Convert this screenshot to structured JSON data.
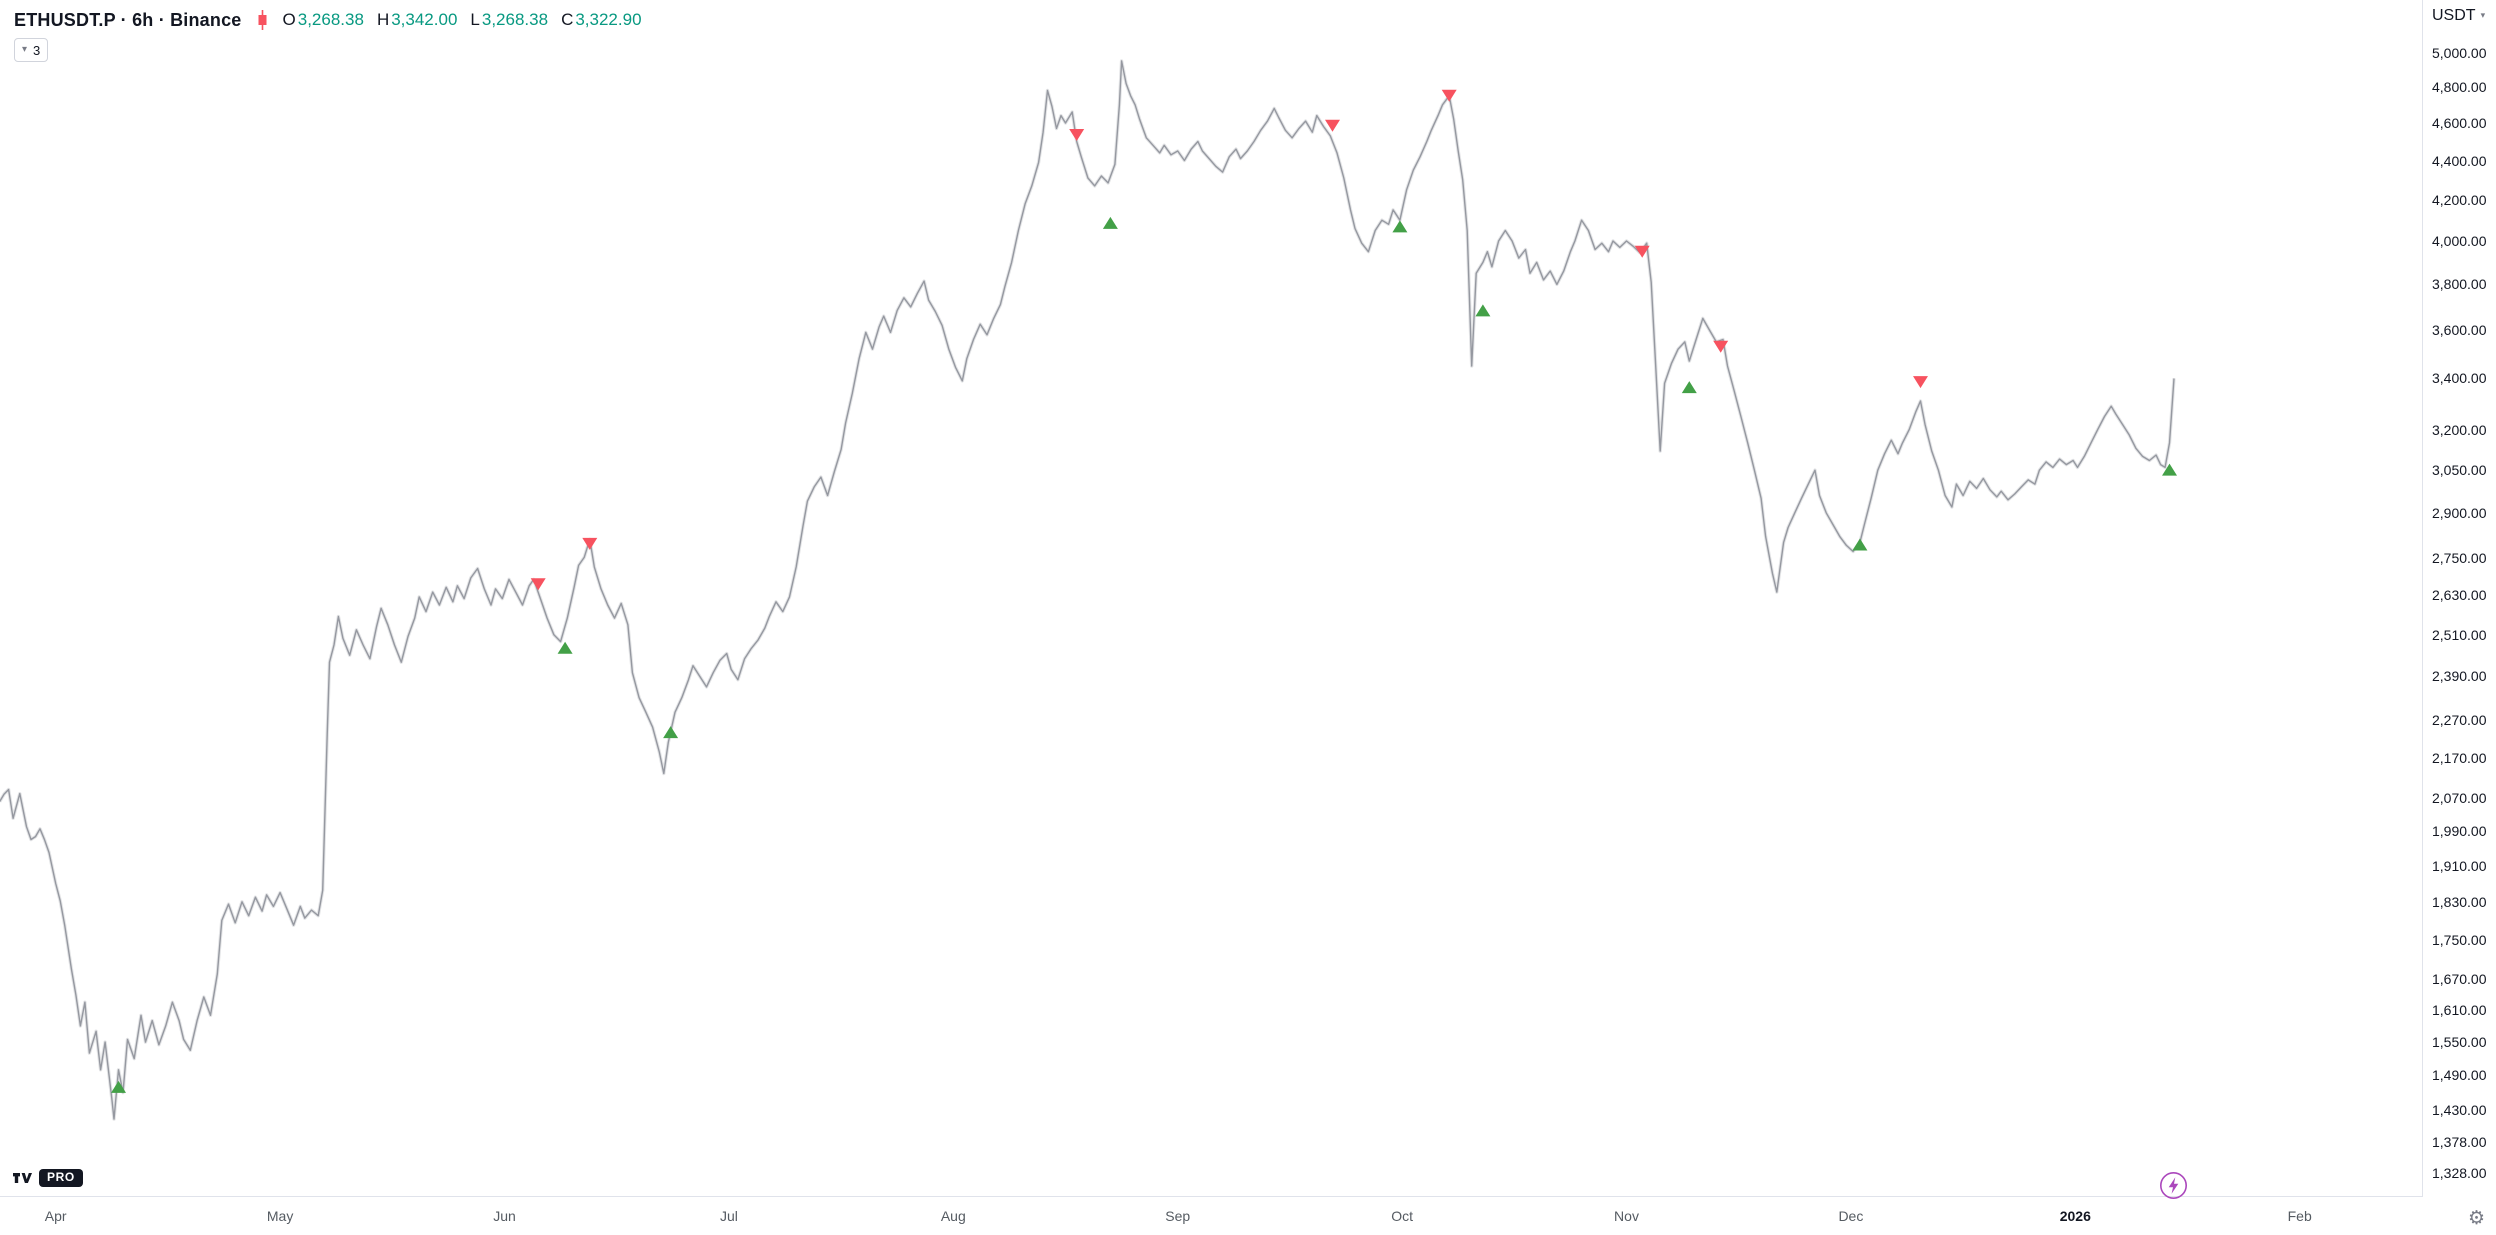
{
  "header": {
    "title": "ETHUSDT.P · 6h · Binance",
    "symbol": "ETHUSDT.P",
    "interval": "6h",
    "exchange": "Binance",
    "ohlc": {
      "o_label": "O",
      "o": "3,268.38",
      "h_label": "H",
      "h": "3,342.00",
      "l_label": "L",
      "l": "3,268.38",
      "c_label": "C",
      "c": "3,322.90"
    },
    "indicator_count": "3"
  },
  "price_axis": {
    "currency": "USDT",
    "labels": [
      "5,000.00",
      "4,800.00",
      "4,600.00",
      "4,400.00",
      "4,200.00",
      "4,000.00",
      "3,800.00",
      "3,600.00",
      "3,400.00",
      "3,200.00",
      "3,050.00",
      "2,900.00",
      "2,750.00",
      "2,630.00",
      "2,510.00",
      "2,390.00",
      "2,270.00",
      "2,170.00",
      "2,070.00",
      "1,990.00",
      "1,910.00",
      "1,830.00",
      "1,750.00",
      "1,670.00",
      "1,610.00",
      "1,550.00",
      "1,490.00",
      "1,430.00",
      "1,378.00",
      "1,328.00"
    ],
    "values": [
      5000,
      4800,
      4600,
      4400,
      4200,
      4000,
      3800,
      3600,
      3400,
      3200,
      3050,
      2900,
      2750,
      2630,
      2510,
      2390,
      2270,
      2170,
      2070,
      1990,
      1910,
      1830,
      1750,
      1670,
      1610,
      1550,
      1490,
      1430,
      1378,
      1328
    ]
  },
  "time_axis": {
    "labels": [
      {
        "label": "Apr",
        "t": 0,
        "type": "month"
      },
      {
        "label": "May",
        "t": 1,
        "type": "month"
      },
      {
        "label": "Jun",
        "t": 2,
        "type": "month"
      },
      {
        "label": "Jul",
        "t": 3,
        "type": "month"
      },
      {
        "label": "Aug",
        "t": 4,
        "type": "month"
      },
      {
        "label": "Sep",
        "t": 5,
        "type": "month"
      },
      {
        "label": "Oct",
        "t": 6,
        "type": "month"
      },
      {
        "label": "Nov",
        "t": 7,
        "type": "month"
      },
      {
        "label": "Dec",
        "t": 8,
        "type": "month"
      },
      {
        "label": "2026",
        "t": 9,
        "type": "year"
      },
      {
        "label": "Feb",
        "t": 10,
        "type": "month"
      }
    ]
  },
  "footer": {
    "pro_label": "PRO"
  },
  "colors": {
    "up": "#089981",
    "down": "#f7525f",
    "line": "#90949c",
    "marker_buy": "#43a047",
    "marker_sell": "#f7525f",
    "text": "#131722",
    "muted": "#787b86",
    "time_text": "#555b62",
    "border": "#e0e3eb",
    "boost": "#ab47bc",
    "badge_bg": "#131722",
    "badge_text": "#ffffff"
  },
  "chart_data": {
    "type": "line",
    "title": "ETHUSDT.P 6h Binance price",
    "x_unit": "months since Apr (Apr=0 ... 2026-Jan=9, Feb=10)",
    "y_scale": "log",
    "xlim": [
      -0.25,
      10.85
    ],
    "ylim": [
      1328,
      5000
    ],
    "grid": false,
    "legend_position": "none",
    "points": [
      [
        -0.25,
        2060
      ],
      [
        -0.21,
        2090
      ],
      [
        -0.19,
        2020
      ],
      [
        -0.16,
        2080
      ],
      [
        -0.13,
        2000
      ],
      [
        -0.11,
        1970
      ],
      [
        -0.07,
        1995
      ],
      [
        -0.03,
        1940
      ],
      [
        0,
        1870
      ],
      [
        0.04,
        1780
      ],
      [
        0.07,
        1690
      ],
      [
        0.11,
        1580
      ],
      [
        0.13,
        1625
      ],
      [
        0.15,
        1530
      ],
      [
        0.18,
        1570
      ],
      [
        0.2,
        1500
      ],
      [
        0.22,
        1550
      ],
      [
        0.25,
        1450
      ],
      [
        0.26,
        1415
      ],
      [
        0.28,
        1500
      ],
      [
        0.3,
        1460
      ],
      [
        0.32,
        1555
      ],
      [
        0.35,
        1520
      ],
      [
        0.38,
        1600
      ],
      [
        0.4,
        1550
      ],
      [
        0.43,
        1590
      ],
      [
        0.46,
        1545
      ],
      [
        0.49,
        1580
      ],
      [
        0.52,
        1625
      ],
      [
        0.55,
        1590
      ],
      [
        0.57,
        1555
      ],
      [
        0.6,
        1535
      ],
      [
        0.63,
        1590
      ],
      [
        0.66,
        1635
      ],
      [
        0.69,
        1600
      ],
      [
        0.72,
        1680
      ],
      [
        0.74,
        1790
      ],
      [
        0.77,
        1825
      ],
      [
        0.8,
        1785
      ],
      [
        0.83,
        1830
      ],
      [
        0.86,
        1800
      ],
      [
        0.89,
        1840
      ],
      [
        0.92,
        1810
      ],
      [
        0.94,
        1845
      ],
      [
        0.97,
        1820
      ],
      [
        1,
        1850
      ],
      [
        1.03,
        1815
      ],
      [
        1.06,
        1780
      ],
      [
        1.09,
        1820
      ],
      [
        1.11,
        1795
      ],
      [
        1.14,
        1812
      ],
      [
        1.17,
        1800
      ],
      [
        1.19,
        1855
      ],
      [
        1.21,
        2230
      ],
      [
        1.22,
        2430
      ],
      [
        1.24,
        2480
      ],
      [
        1.26,
        2565
      ],
      [
        1.28,
        2500
      ],
      [
        1.31,
        2450
      ],
      [
        1.34,
        2525
      ],
      [
        1.37,
        2480
      ],
      [
        1.4,
        2440
      ],
      [
        1.43,
        2535
      ],
      [
        1.45,
        2590
      ],
      [
        1.48,
        2540
      ],
      [
        1.51,
        2480
      ],
      [
        1.54,
        2430
      ],
      [
        1.57,
        2505
      ],
      [
        1.6,
        2560
      ],
      [
        1.62,
        2625
      ],
      [
        1.65,
        2580
      ],
      [
        1.68,
        2640
      ],
      [
        1.71,
        2600
      ],
      [
        1.74,
        2655
      ],
      [
        1.77,
        2610
      ],
      [
        1.79,
        2660
      ],
      [
        1.82,
        2620
      ],
      [
        1.85,
        2685
      ],
      [
        1.88,
        2715
      ],
      [
        1.91,
        2650
      ],
      [
        1.94,
        2600
      ],
      [
        1.96,
        2650
      ],
      [
        1.99,
        2620
      ],
      [
        2.02,
        2680
      ],
      [
        2.05,
        2640
      ],
      [
        2.08,
        2600
      ],
      [
        2.11,
        2660
      ],
      [
        2.13,
        2680
      ],
      [
        2.16,
        2620
      ],
      [
        2.19,
        2560
      ],
      [
        2.22,
        2510
      ],
      [
        2.25,
        2490
      ],
      [
        2.28,
        2560
      ],
      [
        2.31,
        2655
      ],
      [
        2.33,
        2725
      ],
      [
        2.38,
        2810
      ],
      [
        2.4,
        2720
      ],
      [
        2.43,
        2650
      ],
      [
        2.46,
        2600
      ],
      [
        2.49,
        2560
      ],
      [
        2.52,
        2605
      ],
      [
        2.55,
        2540
      ],
      [
        2.57,
        2400
      ],
      [
        2.6,
        2330
      ],
      [
        2.63,
        2290
      ],
      [
        2.66,
        2250
      ],
      [
        2.69,
        2185
      ],
      [
        2.71,
        2130
      ],
      [
        2.73,
        2210
      ],
      [
        2.76,
        2290
      ],
      [
        2.79,
        2330
      ],
      [
        2.82,
        2380
      ],
      [
        2.84,
        2420
      ],
      [
        2.87,
        2390
      ],
      [
        2.9,
        2360
      ],
      [
        2.93,
        2400
      ],
      [
        2.96,
        2435
      ],
      [
        2.99,
        2455
      ],
      [
        3.01,
        2410
      ],
      [
        3.04,
        2380
      ],
      [
        3.07,
        2440
      ],
      [
        3.1,
        2470
      ],
      [
        3.13,
        2495
      ],
      [
        3.16,
        2530
      ],
      [
        3.18,
        2565
      ],
      [
        3.21,
        2610
      ],
      [
        3.24,
        2580
      ],
      [
        3.27,
        2625
      ],
      [
        3.3,
        2720
      ],
      [
        3.33,
        2855
      ],
      [
        3.35,
        2940
      ],
      [
        3.38,
        2990
      ],
      [
        3.41,
        3025
      ],
      [
        3.44,
        2960
      ],
      [
        3.47,
        3045
      ],
      [
        3.5,
        3125
      ],
      [
        3.52,
        3225
      ],
      [
        3.55,
        3340
      ],
      [
        3.58,
        3480
      ],
      [
        3.61,
        3590
      ],
      [
        3.64,
        3520
      ],
      [
        3.67,
        3615
      ],
      [
        3.69,
        3660
      ],
      [
        3.72,
        3590
      ],
      [
        3.75,
        3685
      ],
      [
        3.78,
        3740
      ],
      [
        3.81,
        3700
      ],
      [
        3.84,
        3760
      ],
      [
        3.87,
        3815
      ],
      [
        3.89,
        3730
      ],
      [
        3.92,
        3680
      ],
      [
        3.95,
        3620
      ],
      [
        3.98,
        3520
      ],
      [
        4.01,
        3445
      ],
      [
        4.04,
        3390
      ],
      [
        4.06,
        3480
      ],
      [
        4.09,
        3560
      ],
      [
        4.12,
        3625
      ],
      [
        4.15,
        3580
      ],
      [
        4.18,
        3650
      ],
      [
        4.21,
        3710
      ],
      [
        4.23,
        3790
      ],
      [
        4.26,
        3900
      ],
      [
        4.29,
        4050
      ],
      [
        4.32,
        4180
      ],
      [
        4.35,
        4270
      ],
      [
        4.38,
        4390
      ],
      [
        4.4,
        4550
      ],
      [
        4.42,
        4780
      ],
      [
        4.44,
        4690
      ],
      [
        4.46,
        4570
      ],
      [
        4.48,
        4640
      ],
      [
        4.5,
        4600
      ],
      [
        4.53,
        4660
      ],
      [
        4.55,
        4500
      ],
      [
        4.57,
        4420
      ],
      [
        4.6,
        4310
      ],
      [
        4.63,
        4270
      ],
      [
        4.66,
        4320
      ],
      [
        4.69,
        4285
      ],
      [
        4.72,
        4380
      ],
      [
        4.74,
        4700
      ],
      [
        4.75,
        4950
      ],
      [
        4.77,
        4820
      ],
      [
        4.79,
        4750
      ],
      [
        4.81,
        4700
      ],
      [
        4.83,
        4620
      ],
      [
        4.86,
        4520
      ],
      [
        4.89,
        4480
      ],
      [
        4.92,
        4440
      ],
      [
        4.94,
        4480
      ],
      [
        4.97,
        4430
      ],
      [
        5,
        4450
      ],
      [
        5.03,
        4400
      ],
      [
        5.06,
        4460
      ],
      [
        5.09,
        4500
      ],
      [
        5.11,
        4450
      ],
      [
        5.14,
        4410
      ],
      [
        5.17,
        4370
      ],
      [
        5.2,
        4340
      ],
      [
        5.23,
        4420
      ],
      [
        5.26,
        4460
      ],
      [
        5.28,
        4410
      ],
      [
        5.31,
        4450
      ],
      [
        5.34,
        4500
      ],
      [
        5.37,
        4560
      ],
      [
        5.4,
        4610
      ],
      [
        5.43,
        4680
      ],
      [
        5.45,
        4630
      ],
      [
        5.48,
        4560
      ],
      [
        5.51,
        4520
      ],
      [
        5.54,
        4570
      ],
      [
        5.57,
        4610
      ],
      [
        5.6,
        4550
      ],
      [
        5.62,
        4640
      ],
      [
        5.65,
        4580
      ],
      [
        5.68,
        4530
      ],
      [
        5.71,
        4440
      ],
      [
        5.74,
        4310
      ],
      [
        5.77,
        4150
      ],
      [
        5.79,
        4060
      ],
      [
        5.82,
        3990
      ],
      [
        5.85,
        3950
      ],
      [
        5.88,
        4050
      ],
      [
        5.91,
        4100
      ],
      [
        5.94,
        4080
      ],
      [
        5.96,
        4150
      ],
      [
        5.99,
        4100
      ],
      [
        6.02,
        4250
      ],
      [
        6.05,
        4350
      ],
      [
        6.08,
        4420
      ],
      [
        6.11,
        4500
      ],
      [
        6.13,
        4560
      ],
      [
        6.16,
        4640
      ],
      [
        6.18,
        4700
      ],
      [
        6.21,
        4750
      ],
      [
        6.23,
        4620
      ],
      [
        6.25,
        4450
      ],
      [
        6.27,
        4300
      ],
      [
        6.29,
        4050
      ],
      [
        6.31,
        3450
      ],
      [
        6.33,
        3850
      ],
      [
        6.36,
        3900
      ],
      [
        6.38,
        3950
      ],
      [
        6.4,
        3880
      ],
      [
        6.43,
        4000
      ],
      [
        6.46,
        4050
      ],
      [
        6.49,
        4000
      ],
      [
        6.52,
        3920
      ],
      [
        6.55,
        3960
      ],
      [
        6.57,
        3850
      ],
      [
        6.6,
        3900
      ],
      [
        6.63,
        3820
      ],
      [
        6.66,
        3860
      ],
      [
        6.69,
        3800
      ],
      [
        6.72,
        3860
      ],
      [
        6.75,
        3950
      ],
      [
        6.77,
        4000
      ],
      [
        6.8,
        4100
      ],
      [
        6.83,
        4050
      ],
      [
        6.86,
        3960
      ],
      [
        6.89,
        3990
      ],
      [
        6.92,
        3950
      ],
      [
        6.94,
        4000
      ],
      [
        6.97,
        3970
      ],
      [
        7,
        4000
      ],
      [
        7.03,
        3975
      ],
      [
        7.06,
        3945
      ],
      [
        7.09,
        3990
      ],
      [
        7.11,
        3810
      ],
      [
        7.13,
        3450
      ],
      [
        7.15,
        3120
      ],
      [
        7.17,
        3380
      ],
      [
        7.2,
        3460
      ],
      [
        7.23,
        3520
      ],
      [
        7.26,
        3550
      ],
      [
        7.28,
        3470
      ],
      [
        7.31,
        3560
      ],
      [
        7.34,
        3650
      ],
      [
        7.37,
        3600
      ],
      [
        7.4,
        3550
      ],
      [
        7.43,
        3560
      ],
      [
        7.45,
        3450
      ],
      [
        7.48,
        3350
      ],
      [
        7.51,
        3250
      ],
      [
        7.54,
        3150
      ],
      [
        7.57,
        3050
      ],
      [
        7.6,
        2950
      ],
      [
        7.62,
        2820
      ],
      [
        7.65,
        2700
      ],
      [
        7.67,
        2640
      ],
      [
        7.7,
        2800
      ],
      [
        7.72,
        2850
      ],
      [
        7.75,
        2900
      ],
      [
        7.78,
        2950
      ],
      [
        7.81,
        3000
      ],
      [
        7.84,
        3050
      ],
      [
        7.86,
        2960
      ],
      [
        7.89,
        2900
      ],
      [
        7.92,
        2860
      ],
      [
        7.95,
        2820
      ],
      [
        7.98,
        2790
      ],
      [
        8.01,
        2770
      ],
      [
        8.04,
        2800
      ],
      [
        8.06,
        2860
      ],
      [
        8.09,
        2950
      ],
      [
        8.12,
        3050
      ],
      [
        8.15,
        3110
      ],
      [
        8.18,
        3160
      ],
      [
        8.21,
        3110
      ],
      [
        8.23,
        3150
      ],
      [
        8.26,
        3200
      ],
      [
        8.29,
        3270
      ],
      [
        8.31,
        3310
      ],
      [
        8.33,
        3220
      ],
      [
        8.36,
        3120
      ],
      [
        8.39,
        3050
      ],
      [
        8.42,
        2960
      ],
      [
        8.45,
        2920
      ],
      [
        8.47,
        3000
      ],
      [
        8.5,
        2960
      ],
      [
        8.53,
        3010
      ],
      [
        8.56,
        2985
      ],
      [
        8.59,
        3020
      ],
      [
        8.62,
        2980
      ],
      [
        8.65,
        2955
      ],
      [
        8.67,
        2975
      ],
      [
        8.7,
        2945
      ],
      [
        8.73,
        2965
      ],
      [
        8.76,
        2990
      ],
      [
        8.79,
        3015
      ],
      [
        8.82,
        3000
      ],
      [
        8.84,
        3050
      ],
      [
        8.87,
        3080
      ],
      [
        8.9,
        3060
      ],
      [
        8.93,
        3090
      ],
      [
        8.96,
        3070
      ],
      [
        8.99,
        3085
      ],
      [
        9.01,
        3060
      ],
      [
        9.04,
        3100
      ],
      [
        9.07,
        3150
      ],
      [
        9.1,
        3200
      ],
      [
        9.13,
        3250
      ],
      [
        9.16,
        3290
      ],
      [
        9.18,
        3260
      ],
      [
        9.21,
        3220
      ],
      [
        9.24,
        3180
      ],
      [
        9.27,
        3130
      ],
      [
        9.3,
        3100
      ],
      [
        9.33,
        3085
      ],
      [
        9.36,
        3105
      ],
      [
        9.38,
        3070
      ],
      [
        9.4,
        3060
      ],
      [
        9.42,
        3150
      ],
      [
        9.44,
        3400
      ]
    ],
    "markers": {
      "buy": [
        [
          0.28,
          1470
        ],
        [
          2.27,
          2472
        ],
        [
          2.74,
          2237
        ],
        [
          4.7,
          4087
        ],
        [
          5.99,
          4070
        ],
        [
          6.36,
          3685
        ],
        [
          7.28,
          3365
        ],
        [
          8.04,
          2793
        ],
        [
          9.42,
          3052
        ]
      ],
      "sell": [
        [
          2.15,
          2665
        ],
        [
          2.38,
          2795
        ],
        [
          4.55,
          4535
        ],
        [
          5.69,
          4585
        ],
        [
          6.21,
          4750
        ],
        [
          7.07,
          3950
        ],
        [
          7.42,
          3530
        ],
        [
          8.31,
          3385
        ]
      ]
    }
  }
}
